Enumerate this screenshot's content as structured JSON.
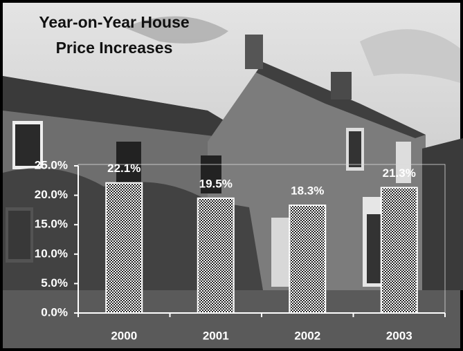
{
  "chart_data": {
    "type": "bar",
    "title": [
      "Year-on-Year House",
      "Price Increases"
    ],
    "categories": [
      "2000",
      "2001",
      "2002",
      "2003"
    ],
    "values": [
      22.1,
      19.5,
      18.3,
      21.3
    ],
    "value_labels": [
      "22.1%",
      "19.5%",
      "18.3%",
      "21.3%"
    ],
    "ylim": [
      0,
      25
    ],
    "yticks": [
      {
        "value": 0,
        "label": "0.0%"
      },
      {
        "value": 5,
        "label": "5.0%"
      },
      {
        "value": 10,
        "label": "10.0%"
      },
      {
        "value": 15,
        "label": "15.0%"
      },
      {
        "value": 20,
        "label": "20.0%"
      },
      {
        "value": 25,
        "label": "25.0%"
      }
    ]
  }
}
